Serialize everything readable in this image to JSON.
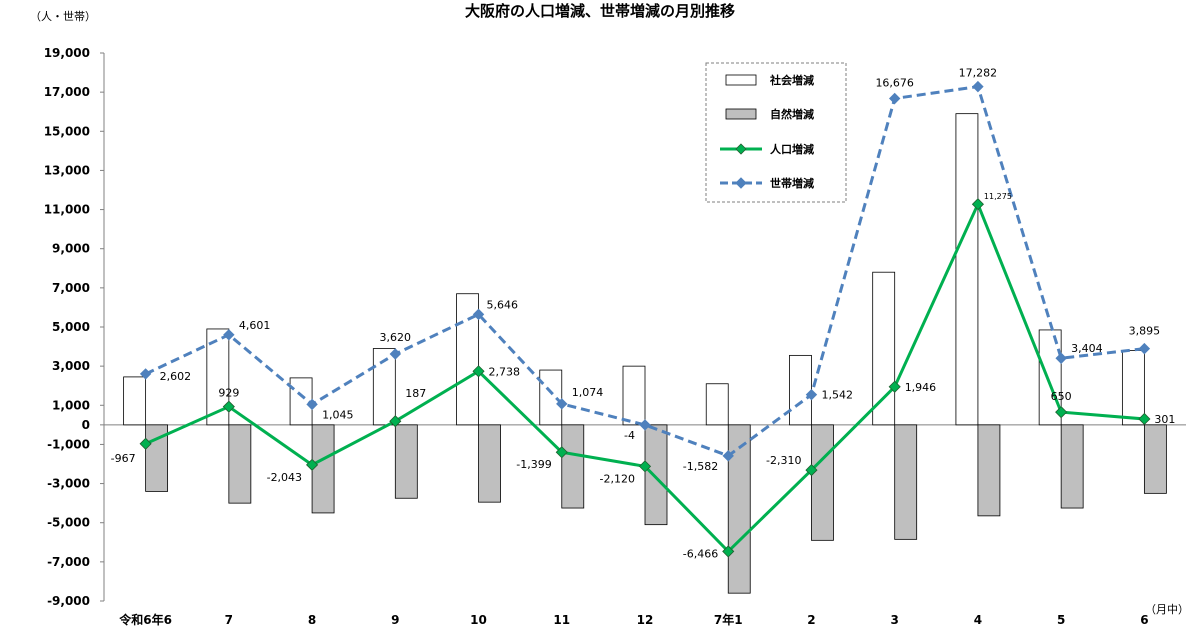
{
  "chart_data": {
    "type": "bar",
    "title": "大阪府の人口増減、世帯増減の月別推移",
    "ylabel": "（人・世帯）",
    "xunit": "（月中）",
    "ylim": [
      -9000,
      19000
    ],
    "yticks": [
      19000,
      17000,
      15000,
      13000,
      11000,
      9000,
      7000,
      5000,
      3000,
      1000,
      0,
      -1000,
      -3000,
      -5000,
      -7000,
      -9000
    ],
    "ytick_labels": [
      "19,000",
      "17,000",
      "15,000",
      "13,000",
      "11,000",
      "9,000",
      "7,000",
      "5,000",
      "3,000",
      "1,000",
      "0",
      "-1,000",
      "-3,000",
      "-5,000",
      "-7,000",
      "-9,000"
    ],
    "categories": [
      "令和6年6",
      "7",
      "8",
      "9",
      "10",
      "11",
      "12",
      "7年1",
      "2",
      "3",
      "4",
      "5",
      "6"
    ],
    "legend_position": "top-right",
    "series": [
      {
        "name": "社会増減",
        "kind": "bar",
        "color": "#ffffff",
        "values": [
          2450,
          4900,
          2400,
          3900,
          6700,
          2800,
          3000,
          2100,
          3550,
          7800,
          15900,
          4850,
          3800
        ]
      },
      {
        "name": "自然増減",
        "kind": "bar",
        "color": "#bfbfbf",
        "values": [
          -3400,
          -4000,
          -4500,
          -3750,
          -3950,
          -4250,
          -5100,
          -8600,
          -5900,
          -5850,
          -4650,
          -4250,
          -3500
        ]
      },
      {
        "name": "人口増減",
        "kind": "line",
        "color": "#00b050",
        "values": [
          -967,
          929,
          -2043,
          187,
          2738,
          -1399,
          -2120,
          -6466,
          -2310,
          1946,
          11275,
          650,
          301
        ],
        "labels": [
          "-967",
          "929",
          "-2,043",
          "187",
          "2,738",
          "-1,399",
          "-2,120",
          "-6,466",
          "-2,310",
          "1,946",
          "11,275",
          "650",
          "301"
        ]
      },
      {
        "name": "世帯増減",
        "kind": "line",
        "color": "#4f81bd",
        "dashed": true,
        "values": [
          2602,
          4601,
          1045,
          3620,
          5646,
          1074,
          -4,
          -1582,
          1542,
          16676,
          17282,
          3404,
          3895
        ],
        "labels": [
          "2,602",
          "4,601",
          "1,045",
          "3,620",
          "5,646",
          "1,074",
          "-4",
          "-1,582",
          "1,542",
          "16,676",
          "17,282",
          "3,404",
          "3,895"
        ]
      }
    ]
  }
}
